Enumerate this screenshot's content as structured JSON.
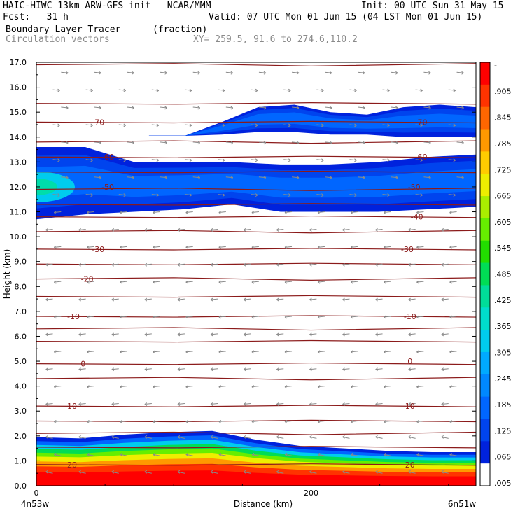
{
  "header": {
    "line1_left": "HAIC-HIWC 13km ARW-GFS init   NCAR/MMM",
    "line1_right": "Init: 00 UTC Sun 31 May 15",
    "line2_left": "Fcst:   31 h",
    "line2_right": "Valid: 07 UTC Mon 01 Jun 15 (04 LST Mon 01 Jun 15)",
    "field": "Boundary Layer Tracer",
    "units": "(fraction)",
    "overlay": "Circulation vectors",
    "xy": "XY= 259.5, 91.6 to 274.6,110.2"
  },
  "colors": {
    "theta_contour": "#8b1a1a",
    "vector": "#8a8a8a",
    "scale": [
      "#ffffff",
      "#0022dd",
      "#0044ee",
      "#0066ff",
      "#0088ff",
      "#00aaff",
      "#00ccee",
      "#00ddcc",
      "#00dd99",
      "#00dd55",
      "#22dd00",
      "#66ee00",
      "#aaee00",
      "#eeee00",
      "#ffcc00",
      "#ff9900",
      "#ff6600",
      "#ff3300",
      "#ff0000"
    ]
  },
  "chart_data": {
    "type": "heatmap",
    "ylabel": "Height (km)",
    "xlabel": "Distance (km)",
    "x_left_label": "4n53w",
    "x_right_label": "6n51w",
    "x_ticks": [
      "0",
      "200"
    ],
    "y_ticks": [
      "0.0",
      "1.0",
      "2.0",
      "3.0",
      "4.0",
      "5.0",
      "6.0",
      "7.0",
      "8.0",
      "9.0",
      "10.0",
      "11.0",
      "12.0",
      "13.0",
      "14.0",
      "15.0",
      "16.0",
      "17.0"
    ],
    "ylim": [
      0,
      17
    ],
    "xlim": [
      0,
      320
    ],
    "colorbar_labels": [
      "-",
      ".905",
      ".845",
      ".785",
      ".725",
      ".665",
      ".605",
      ".545",
      ".485",
      ".425",
      ".365",
      ".305",
      ".245",
      ".185",
      ".125",
      ".065",
      ".005"
    ],
    "contour_labels": [
      {
        "text": "-70",
        "x": 45,
        "y": 14.6
      },
      {
        "text": "-70",
        "x": 280,
        "y": 14.6
      },
      {
        "text": "-60",
        "x": 52,
        "y": 13.2
      },
      {
        "text": "-60",
        "x": 280,
        "y": 13.2
      },
      {
        "text": "-50",
        "x": 52,
        "y": 12.0
      },
      {
        "text": "-50",
        "x": 275,
        "y": 12.0
      },
      {
        "text": "-40",
        "x": 277,
        "y": 10.8
      },
      {
        "text": "-30",
        "x": 45,
        "y": 9.5
      },
      {
        "text": "-30",
        "x": 270,
        "y": 9.5
      },
      {
        "text": "-20",
        "x": 37,
        "y": 8.3
      },
      {
        "text": "-10",
        "x": 27,
        "y": 6.8
      },
      {
        "text": "-10",
        "x": 272,
        "y": 6.8
      },
      {
        "text": "0",
        "x": 34,
        "y": 4.9
      },
      {
        "text": "0",
        "x": 272,
        "y": 5.0
      },
      {
        "text": "10",
        "x": 26,
        "y": 3.2
      },
      {
        "text": "10",
        "x": 272,
        "y": 3.2
      },
      {
        "text": "20",
        "x": 26,
        "y": 0.85
      },
      {
        "text": "20",
        "x": 272,
        "y": 0.85
      }
    ],
    "theta_levels_km": [
      16.9,
      15.35,
      14.6,
      13.8,
      13.2,
      12.6,
      11.9,
      11.3,
      10.8,
      10.2,
      9.5,
      8.9,
      8.3,
      7.6,
      6.8,
      6.3,
      5.8,
      4.9,
      4.3,
      3.2,
      2.6,
      2.1,
      1.55,
      0.85
    ],
    "tracer_layers": [
      {
        "name": "upper-band",
        "bot": [
          14.05,
          14.05,
          14.1,
          14.2,
          14.2,
          14.1,
          14.1,
          14.0,
          14.0,
          14.0
        ],
        "top": [
          0,
          0,
          14.6,
          15.2,
          15.3,
          15.0,
          14.9,
          15.2,
          15.3,
          15.2
        ],
        "xstart": 82,
        "level": 3
      },
      {
        "name": "mid-band",
        "bot": [
          10.7,
          10.9,
          11.0,
          11.1,
          11.3,
          11.0,
          11.0,
          11.0,
          11.1,
          11.2
        ],
        "top": [
          13.6,
          13.6,
          13.0,
          13.0,
          13.0,
          12.9,
          12.9,
          13.0,
          13.2,
          13.3
        ],
        "xstart": 0,
        "level": 2
      }
    ],
    "bl_top_km": [
      1.95,
      1.9,
      2.05,
      2.15,
      2.2,
      1.85,
      1.6,
      1.5,
      1.4,
      1.35,
      1.35
    ]
  }
}
